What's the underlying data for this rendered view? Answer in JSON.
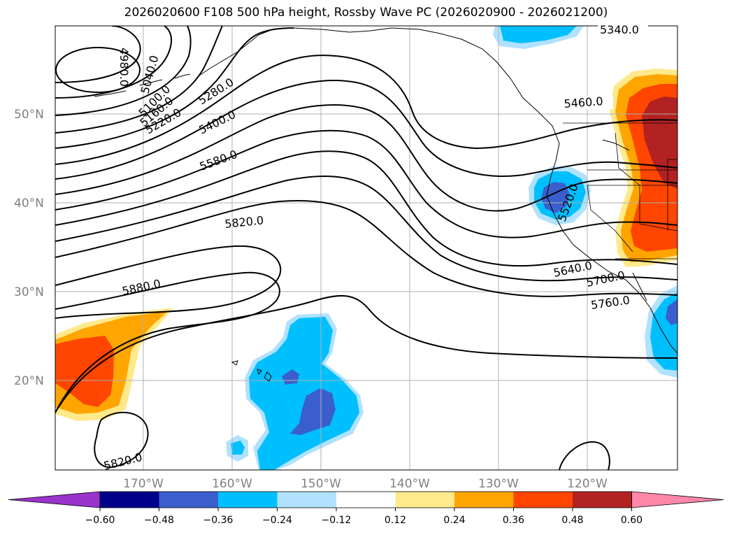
{
  "title": "2026020600 F108 500 hPa height, Rossby Wave PC (2026020900 - 2026021200)",
  "latitude_labels": [
    "50°N",
    "40°N",
    "30°N",
    "20°N"
  ],
  "longitude_labels": [
    "170°W",
    "160°W",
    "150°W",
    "140°W",
    "130°W",
    "120°W"
  ],
  "contour_labels": [
    "5340.0",
    "4980.0",
    "5040.0",
    "5100.0",
    "5160.0",
    "5220.0",
    "5280.0",
    "5400.0",
    "5460.0",
    "5580.0",
    "5520.0",
    "5820.0",
    "5640.0",
    "5700.0",
    "5880.0",
    "5760.0",
    "5820.0"
  ],
  "colorbar": {
    "tick_labels": [
      "−0.60",
      "−0.48",
      "−0.36",
      "−0.24",
      "−0.12",
      "0.12",
      "0.24",
      "0.36",
      "0.48",
      "0.60"
    ],
    "colors": [
      "#9933cc",
      "#00008b",
      "#3a5fcd",
      "#00bfff",
      "#b0e2ff",
      "#ffffff",
      "#ffe98a",
      "#ffa500",
      "#ff4500",
      "#b22222",
      "#ff88aa"
    ]
  }
}
